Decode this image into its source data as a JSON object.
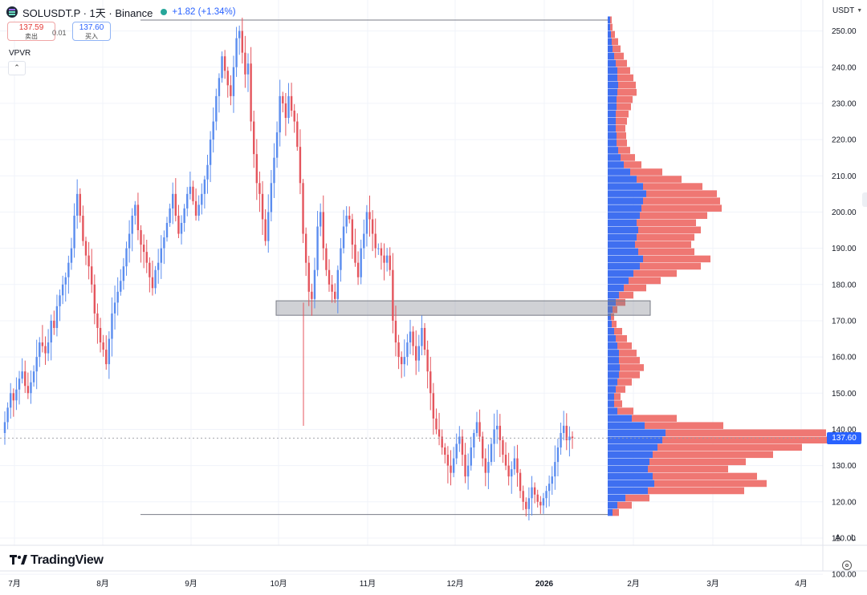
{
  "header": {
    "symbol_title": "SOLUSDT.P · 1天 · Binance",
    "change": "+1.82 (+1.34%)",
    "sell_price": "137.59",
    "sell_label": "卖出",
    "spread": "0.01",
    "buy_price": "137.60",
    "buy_label": "买入",
    "currency": "USDT"
  },
  "indicator": {
    "name": "VPVR",
    "collapse_icon": "chevron-up-icon"
  },
  "price_axis": {
    "ticks": [
      "250.00",
      "240.00",
      "230.00",
      "220.00",
      "210.00",
      "200.00",
      "190.00",
      "180.00",
      "170.00",
      "160.00",
      "150.00",
      "140.00",
      "130.00",
      "120.00",
      "110.00",
      "100.00"
    ],
    "last_price": "137.60"
  },
  "time_axis": {
    "ticks": [
      "7月",
      "8月",
      "9月",
      "10月",
      "11月",
      "12月",
      "2026",
      "2月",
      "3月",
      "4月"
    ]
  },
  "controls": {
    "auto_label": "A",
    "log_label": "L",
    "settings_icon": "gear-icon"
  },
  "branding": {
    "logo_text": "TradingView",
    "logo_icon": "tradingview-logo-icon"
  },
  "colors": {
    "up": "#5b8def",
    "down": "#e4555d",
    "vp_up": "#3f6ff0",
    "vp_down": "#ef7773",
    "accent": "#2962ff"
  },
  "chart_data": {
    "type": "candlestick",
    "symbol": "SOLUSDT.P",
    "interval": "1天",
    "exchange": "Binance",
    "last_price": 137.6,
    "change": 1.82,
    "change_pct": 1.34,
    "y_range": [
      108,
      255
    ],
    "x_labels": [
      "7月",
      "8月",
      "9月",
      "10月",
      "11月",
      "12月",
      "2026",
      "2月",
      "3月",
      "4月"
    ],
    "range_lines": {
      "high": 253.0,
      "low": 116.5
    },
    "highlight_zone": {
      "from": 171.5,
      "to": 175.5
    },
    "closes": [
      142,
      146,
      150,
      148,
      151,
      154,
      156,
      152,
      150,
      153,
      156,
      160,
      164,
      163,
      161,
      164,
      170,
      168,
      174,
      177,
      180,
      182,
      186,
      190,
      199,
      205,
      199,
      192,
      188,
      185,
      180,
      172,
      168,
      164,
      162,
      158,
      165,
      172,
      175,
      178,
      181,
      185,
      190,
      194,
      199,
      202,
      195,
      191,
      189,
      186,
      182,
      179,
      184,
      186,
      190,
      193,
      197,
      201,
      205,
      199,
      194,
      197,
      201,
      205,
      207,
      203,
      199,
      202,
      205,
      209,
      213,
      220,
      225,
      232,
      237,
      243,
      239,
      235,
      232,
      240,
      248,
      250,
      244,
      238,
      241,
      225,
      216,
      208,
      205,
      198,
      192,
      200,
      208,
      215,
      222,
      232,
      230,
      226,
      232,
      228,
      225,
      218,
      208,
      194,
      186,
      178,
      176,
      184,
      196,
      200,
      190,
      184,
      180,
      178,
      176,
      184,
      190,
      196,
      199,
      198,
      191,
      186,
      182,
      190,
      194,
      200,
      198,
      194,
      190,
      190,
      188,
      186,
      188,
      184,
      170,
      164,
      160,
      158,
      160,
      164,
      167,
      163,
      159,
      163,
      168,
      162,
      156,
      150,
      143,
      140,
      138,
      135,
      133,
      130,
      128,
      132,
      136,
      138,
      133,
      127,
      130,
      135,
      139,
      142,
      138,
      132,
      128,
      131,
      136,
      140,
      141,
      137,
      133,
      130,
      127,
      129,
      132,
      128,
      123,
      120,
      118,
      121,
      124,
      122,
      120,
      119,
      121,
      123,
      125,
      127,
      131,
      135,
      139,
      141,
      137,
      138,
      137.6
    ],
    "volume_profile": {
      "bin_size": 2,
      "bins": [
        {
          "price": 253,
          "up": 3,
          "down": 2
        },
        {
          "price": 251,
          "up": 3,
          "down": 3
        },
        {
          "price": 249,
          "up": 4,
          "down": 5
        },
        {
          "price": 247,
          "up": 5,
          "down": 8
        },
        {
          "price": 245,
          "up": 6,
          "down": 10
        },
        {
          "price": 243,
          "up": 8,
          "down": 12
        },
        {
          "price": 241,
          "up": 10,
          "down": 14
        },
        {
          "price": 239,
          "up": 12,
          "down": 16
        },
        {
          "price": 237,
          "up": 12,
          "down": 20
        },
        {
          "price": 235,
          "up": 13,
          "down": 22
        },
        {
          "price": 233,
          "up": 12,
          "down": 24
        },
        {
          "price": 231,
          "up": 11,
          "down": 20
        },
        {
          "price": 229,
          "up": 11,
          "down": 18
        },
        {
          "price": 227,
          "up": 10,
          "down": 16
        },
        {
          "price": 225,
          "up": 10,
          "down": 14
        },
        {
          "price": 223,
          "up": 10,
          "down": 12
        },
        {
          "price": 221,
          "up": 11,
          "down": 12
        },
        {
          "price": 219,
          "up": 11,
          "down": 13
        },
        {
          "price": 217,
          "up": 13,
          "down": 15
        },
        {
          "price": 215,
          "up": 16,
          "down": 18
        },
        {
          "price": 213,
          "up": 20,
          "down": 22
        },
        {
          "price": 211,
          "up": 28,
          "down": 40
        },
        {
          "price": 209,
          "up": 36,
          "down": 56
        },
        {
          "price": 207,
          "up": 44,
          "down": 74
        },
        {
          "price": 205,
          "up": 48,
          "down": 88
        },
        {
          "price": 203,
          "up": 44,
          "down": 96
        },
        {
          "price": 201,
          "up": 42,
          "down": 100
        },
        {
          "price": 199,
          "up": 40,
          "down": 84
        },
        {
          "price": 197,
          "up": 36,
          "down": 74
        },
        {
          "price": 195,
          "up": 38,
          "down": 78
        },
        {
          "price": 193,
          "up": 36,
          "down": 72
        },
        {
          "price": 191,
          "up": 34,
          "down": 70
        },
        {
          "price": 189,
          "up": 38,
          "down": 70
        },
        {
          "price": 187,
          "up": 44,
          "down": 84
        },
        {
          "price": 185,
          "up": 40,
          "down": 76
        },
        {
          "price": 183,
          "up": 32,
          "down": 54
        },
        {
          "price": 181,
          "up": 26,
          "down": 40
        },
        {
          "price": 179,
          "up": 20,
          "down": 28
        },
        {
          "price": 177,
          "up": 14,
          "down": 18
        },
        {
          "price": 175,
          "up": 10,
          "down": 12
        },
        {
          "price": 173,
          "up": 6,
          "down": 6
        },
        {
          "price": 171,
          "up": 4,
          "down": 4
        },
        {
          "price": 169,
          "up": 5,
          "down": 6
        },
        {
          "price": 167,
          "up": 8,
          "down": 10
        },
        {
          "price": 165,
          "up": 10,
          "down": 14
        },
        {
          "price": 163,
          "up": 12,
          "down": 18
        },
        {
          "price": 161,
          "up": 14,
          "down": 22
        },
        {
          "price": 159,
          "up": 14,
          "down": 26
        },
        {
          "price": 157,
          "up": 15,
          "down": 30
        },
        {
          "price": 155,
          "up": 14,
          "down": 26
        },
        {
          "price": 153,
          "up": 12,
          "down": 18
        },
        {
          "price": 151,
          "up": 10,
          "down": 12
        },
        {
          "price": 149,
          "up": 8,
          "down": 8
        },
        {
          "price": 147,
          "up": 8,
          "down": 10
        },
        {
          "price": 145,
          "up": 12,
          "down": 20
        },
        {
          "price": 143,
          "up": 30,
          "down": 56
        },
        {
          "price": 141,
          "up": 46,
          "down": 98
        },
        {
          "price": 139,
          "up": 72,
          "down": 200
        },
        {
          "price": 137,
          "up": 68,
          "down": 210
        },
        {
          "price": 135,
          "up": 62,
          "down": 180
        },
        {
          "price": 133,
          "up": 56,
          "down": 150
        },
        {
          "price": 131,
          "up": 52,
          "down": 120
        },
        {
          "price": 129,
          "up": 50,
          "down": 100
        },
        {
          "price": 127,
          "up": 56,
          "down": 130
        },
        {
          "price": 125,
          "up": 58,
          "down": 140
        },
        {
          "price": 123,
          "up": 50,
          "down": 120
        },
        {
          "price": 121,
          "up": 22,
          "down": 30
        },
        {
          "price": 119,
          "up": 12,
          "down": 18
        },
        {
          "price": 117,
          "up": 6,
          "down": 8
        }
      ]
    }
  }
}
